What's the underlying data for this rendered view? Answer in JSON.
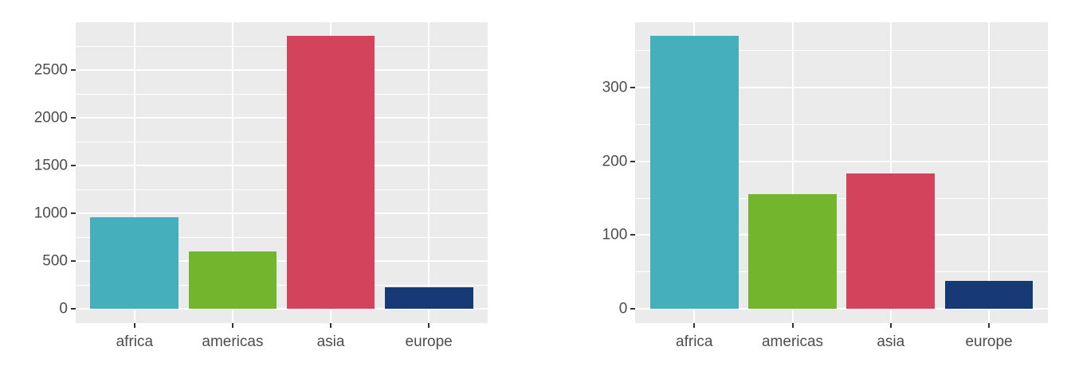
{
  "styles": {
    "background": "#FFFFFF",
    "panel_background": "#EBEBEB",
    "grid_color": "#FFFFFF",
    "text_color": "#4D4D4D",
    "tick_color": "#333333"
  },
  "chart_data": [
    {
      "type": "bar",
      "title": "",
      "xlabel": "",
      "ylabel": "",
      "categories": [
        "africa",
        "americas",
        "asia",
        "europe"
      ],
      "values": [
        960,
        600,
        2855,
        230
      ],
      "bar_colors": [
        "#45AFBC",
        "#72B62E",
        "#D4435C",
        "#173A76"
      ],
      "y_major_ticks": [
        0,
        500,
        1000,
        1500,
        2000,
        2500
      ],
      "y_tick_labels": [
        "0",
        "500",
        "1000",
        "1500",
        "2000",
        "2500"
      ],
      "ylim": [
        0,
        3000
      ],
      "grid": true,
      "legend": "none"
    },
    {
      "type": "bar",
      "title": "",
      "xlabel": "",
      "ylabel": "",
      "categories": [
        "africa",
        "americas",
        "asia",
        "europe"
      ],
      "values": [
        370,
        155,
        183,
        38
      ],
      "bar_colors": [
        "#45AFBC",
        "#72B62E",
        "#D4435C",
        "#173A76"
      ],
      "y_major_ticks": [
        0,
        100,
        200,
        300
      ],
      "y_tick_labels": [
        "0",
        "100",
        "200",
        "300"
      ],
      "ylim": [
        0,
        388
      ],
      "grid": true,
      "legend": "none"
    }
  ]
}
